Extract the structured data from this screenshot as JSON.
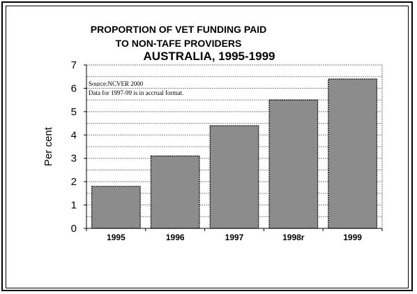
{
  "chart_data": {
    "type": "bar",
    "title_line1": "PROPORTION OF VET FUNDING PAID",
    "title_line2": "TO NON-TAFE PROVIDERS",
    "subtitle": "AUSTRALIA, 1995-1999",
    "xlabel": "",
    "ylabel": "Per cent",
    "categories": [
      "1995",
      "1996",
      "1997",
      "1998r",
      "1999"
    ],
    "values": [
      1.8,
      3.1,
      4.4,
      5.5,
      6.4
    ],
    "ylim": [
      0,
      7
    ],
    "yticks": [
      "0",
      "1",
      "2",
      "3",
      "4",
      "5",
      "6",
      "7"
    ],
    "grid": true,
    "bar_color": "#8c8c8c",
    "annotations": [
      "Source:NCVER 2000",
      "Data for 1997-99 is in accrual format."
    ]
  }
}
